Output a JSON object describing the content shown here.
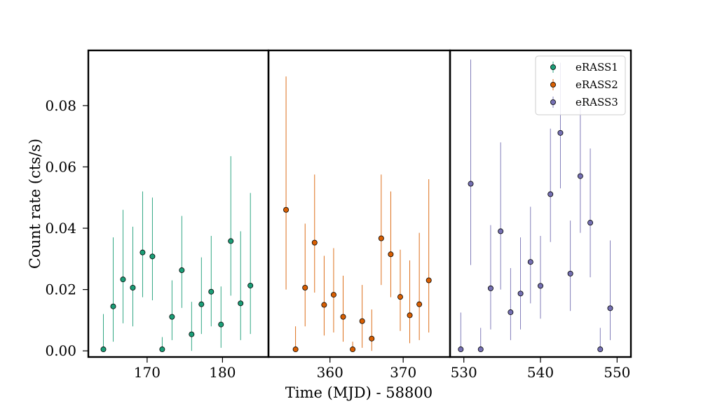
{
  "chart_data": {
    "type": "scatter",
    "xlabel": "Time (MJD) - 58800",
    "ylabel": "Count rate (cts/s)",
    "ylim": [
      -0.002,
      0.098
    ],
    "yticks": [
      0.0,
      0.02,
      0.04,
      0.06,
      0.08
    ],
    "ytick_labels": [
      "0.00",
      "0.02",
      "0.04",
      "0.06",
      "0.08"
    ],
    "error_bars": true,
    "legend_position": "top-right",
    "panels": [
      {
        "xlim": [
          162.2,
          186.1
        ],
        "xticks": [
          170,
          180
        ],
        "xtick_labels": [
          "170",
          "180"
        ]
      },
      {
        "xlim": [
          351.6,
          376.4
        ],
        "xticks": [
          360,
          370
        ],
        "xtick_labels": [
          "360",
          "370"
        ]
      },
      {
        "xlim": [
          528.2,
          551.8
        ],
        "xticks": [
          530,
          540,
          550
        ],
        "xtick_labels": [
          "530",
          "540",
          "550"
        ]
      }
    ],
    "series": [
      {
        "name": "eRASS1",
        "color": "#1b9e77",
        "panel": 0,
        "points": [
          {
            "x": 164.2,
            "y": 0.0005,
            "lo": 0.0,
            "hi": 0.012
          },
          {
            "x": 165.5,
            "y": 0.0145,
            "lo": 0.003,
            "hi": 0.037
          },
          {
            "x": 166.8,
            "y": 0.0233,
            "lo": 0.009,
            "hi": 0.046
          },
          {
            "x": 168.1,
            "y": 0.0206,
            "lo": 0.008,
            "hi": 0.0405
          },
          {
            "x": 169.4,
            "y": 0.0321,
            "lo": 0.0175,
            "hi": 0.052
          },
          {
            "x": 170.7,
            "y": 0.0308,
            "lo": 0.0165,
            "hi": 0.05
          },
          {
            "x": 172.0,
            "y": 0.0005,
            "lo": 0.0,
            "hi": 0.0045
          },
          {
            "x": 173.3,
            "y": 0.0111,
            "lo": 0.0035,
            "hi": 0.023
          },
          {
            "x": 174.6,
            "y": 0.0263,
            "lo": 0.014,
            "hi": 0.044
          },
          {
            "x": 175.9,
            "y": 0.0054,
            "lo": 0.0,
            "hi": 0.016
          },
          {
            "x": 177.2,
            "y": 0.0152,
            "lo": 0.0055,
            "hi": 0.0305
          },
          {
            "x": 178.5,
            "y": 0.0193,
            "lo": 0.008,
            "hi": 0.0375
          },
          {
            "x": 179.8,
            "y": 0.0086,
            "lo": 0.001,
            "hi": 0.021
          },
          {
            "x": 181.1,
            "y": 0.0358,
            "lo": 0.018,
            "hi": 0.0635
          },
          {
            "x": 182.4,
            "y": 0.0155,
            "lo": 0.0035,
            "hi": 0.039
          },
          {
            "x": 183.7,
            "y": 0.0213,
            "lo": 0.0055,
            "hi": 0.0515
          }
        ]
      },
      {
        "name": "eRASS2",
        "color": "#d95f02",
        "panel": 1,
        "points": [
          {
            "x": 354.0,
            "y": 0.046,
            "lo": 0.02,
            "hi": 0.0895
          },
          {
            "x": 355.3,
            "y": 0.0005,
            "lo": 0.0,
            "hi": 0.008
          },
          {
            "x": 356.6,
            "y": 0.0206,
            "lo": 0.008,
            "hi": 0.0415
          },
          {
            "x": 357.9,
            "y": 0.0353,
            "lo": 0.019,
            "hi": 0.0575
          },
          {
            "x": 359.2,
            "y": 0.015,
            "lo": 0.005,
            "hi": 0.031
          },
          {
            "x": 360.5,
            "y": 0.0183,
            "lo": 0.006,
            "hi": 0.0335
          },
          {
            "x": 361.8,
            "y": 0.0111,
            "lo": 0.003,
            "hi": 0.0245
          },
          {
            "x": 363.1,
            "y": 0.0005,
            "lo": 0.0,
            "hi": 0.003
          },
          {
            "x": 364.4,
            "y": 0.0097,
            "lo": 0.001,
            "hi": 0.0215
          },
          {
            "x": 365.7,
            "y": 0.004,
            "lo": 0.0,
            "hi": 0.0135
          },
          {
            "x": 367.0,
            "y": 0.0367,
            "lo": 0.0215,
            "hi": 0.0575
          },
          {
            "x": 368.3,
            "y": 0.0315,
            "lo": 0.0175,
            "hi": 0.052
          },
          {
            "x": 369.6,
            "y": 0.0176,
            "lo": 0.0065,
            "hi": 0.033
          },
          {
            "x": 370.9,
            "y": 0.0116,
            "lo": 0.0025,
            "hi": 0.0295
          },
          {
            "x": 372.2,
            "y": 0.0152,
            "lo": 0.0035,
            "hi": 0.0385
          },
          {
            "x": 373.5,
            "y": 0.023,
            "lo": 0.006,
            "hi": 0.056
          }
        ]
      },
      {
        "name": "eRASS3",
        "color": "#7570b3",
        "panel": 2,
        "points": [
          {
            "x": 529.6,
            "y": 0.0005,
            "lo": 0.0,
            "hi": 0.0125
          },
          {
            "x": 530.9,
            "y": 0.0545,
            "lo": 0.028,
            "hi": 0.095
          },
          {
            "x": 532.2,
            "y": 0.0005,
            "lo": 0.0,
            "hi": 0.0075
          },
          {
            "x": 533.5,
            "y": 0.0204,
            "lo": 0.007,
            "hi": 0.041
          },
          {
            "x": 534.8,
            "y": 0.039,
            "lo": 0.02,
            "hi": 0.068
          },
          {
            "x": 536.1,
            "y": 0.0126,
            "lo": 0.0035,
            "hi": 0.027
          },
          {
            "x": 537.4,
            "y": 0.0187,
            "lo": 0.007,
            "hi": 0.037
          },
          {
            "x": 538.7,
            "y": 0.029,
            "lo": 0.0155,
            "hi": 0.047
          },
          {
            "x": 540.0,
            "y": 0.0212,
            "lo": 0.0105,
            "hi": 0.0375
          },
          {
            "x": 541.3,
            "y": 0.0511,
            "lo": 0.0355,
            "hi": 0.0725
          },
          {
            "x": 542.6,
            "y": 0.0711,
            "lo": 0.053,
            "hi": 0.094
          },
          {
            "x": 543.9,
            "y": 0.0252,
            "lo": 0.013,
            "hi": 0.0425
          },
          {
            "x": 545.2,
            "y": 0.057,
            "lo": 0.0385,
            "hi": 0.08
          },
          {
            "x": 546.5,
            "y": 0.0418,
            "lo": 0.024,
            "hi": 0.066
          },
          {
            "x": 547.8,
            "y": 0.0005,
            "lo": 0.0,
            "hi": 0.0075
          },
          {
            "x": 549.1,
            "y": 0.0139,
            "lo": 0.0035,
            "hi": 0.036
          }
        ]
      }
    ]
  }
}
